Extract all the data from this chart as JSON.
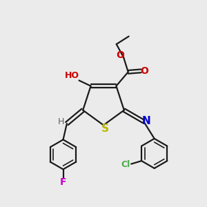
{
  "bg_color": "#ebebeb",
  "bond_color": "#1a1a1a",
  "s_color": "#b8b800",
  "n_color": "#0000cc",
  "o_color": "#cc0000",
  "f_color": "#cc00cc",
  "cl_color": "#4aaa4a",
  "h_color": "#606060",
  "figsize": [
    3.0,
    3.0
  ],
  "dpi": 100,
  "xlim": [
    0,
    10
  ],
  "ylim": [
    0,
    10
  ]
}
